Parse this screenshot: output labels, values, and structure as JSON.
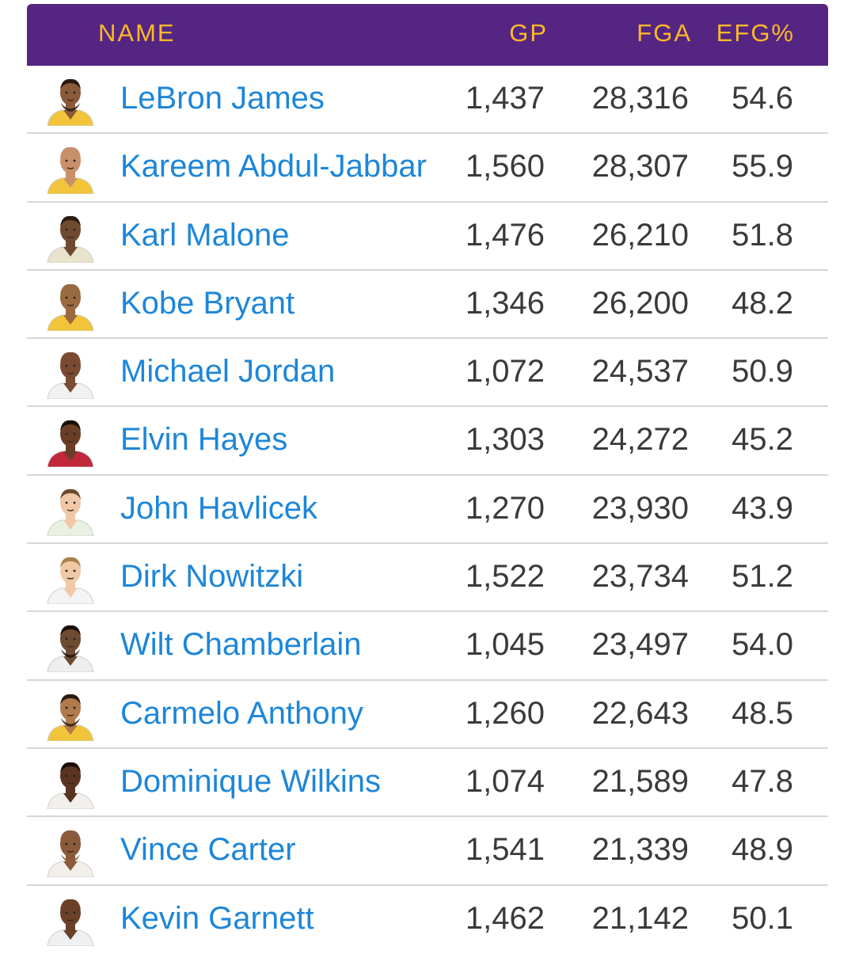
{
  "header": {
    "name": "NAME",
    "gp": "GP",
    "fga": "FGA",
    "efg": "EFG%"
  },
  "colors": {
    "header_bg": "#552583",
    "header_text": "#FDB927",
    "name_link": "#1d86d9",
    "value_text": "#3a3a3a",
    "divider": "#d6d6d6"
  },
  "rows": [
    {
      "name": "LeBron James",
      "gp": "1,437",
      "fga": "28,316",
      "efg": "54.6",
      "avatar": {
        "icon": "player-avatar-icon",
        "skin": "#8a5a3a",
        "jersey": "#f2c43a",
        "hair": "#2a1a10",
        "beard": true
      }
    },
    {
      "name": "Kareem Abdul-Jabbar",
      "gp": "1,560",
      "fga": "28,307",
      "efg": "55.9",
      "avatar": {
        "icon": "player-avatar-icon",
        "skin": "#c8906a",
        "jersey": "#f2c43a",
        "hair": "#c8906a",
        "beard": false
      }
    },
    {
      "name": "Karl Malone",
      "gp": "1,476",
      "fga": "26,210",
      "efg": "51.8",
      "avatar": {
        "icon": "player-avatar-icon",
        "skin": "#6e4a30",
        "jersey": "#e9e3cc",
        "hair": "#2a1a10",
        "beard": false
      }
    },
    {
      "name": "Kobe Bryant",
      "gp": "1,346",
      "fga": "26,200",
      "efg": "48.2",
      "avatar": {
        "icon": "player-avatar-icon",
        "skin": "#9a6a40",
        "jersey": "#f2c43a",
        "hair": "#9a6a40",
        "beard": false
      }
    },
    {
      "name": "Michael Jordan",
      "gp": "1,072",
      "fga": "24,537",
      "efg": "50.9",
      "avatar": {
        "icon": "player-avatar-icon",
        "skin": "#7a4a32",
        "jersey": "#f3f0f0",
        "hair": "#7a4a32",
        "beard": false
      }
    },
    {
      "name": "Elvin Hayes",
      "gp": "1,303",
      "fga": "24,272",
      "efg": "45.2",
      "avatar": {
        "icon": "player-avatar-icon",
        "skin": "#6a3e26",
        "jersey": "#c0283a",
        "hair": "#1a0f08",
        "beard": false
      }
    },
    {
      "name": "John Havlicek",
      "gp": "1,270",
      "fga": "23,930",
      "efg": "43.9",
      "avatar": {
        "icon": "player-avatar-icon",
        "skin": "#f0c8a8",
        "jersey": "#e9f2e2",
        "hair": "#6a4a2e",
        "beard": false
      }
    },
    {
      "name": "Dirk Nowitzki",
      "gp": "1,522",
      "fga": "23,734",
      "efg": "51.2",
      "avatar": {
        "icon": "player-avatar-icon",
        "skin": "#f0caa8",
        "jersey": "#f2f4f6",
        "hair": "#a8804a",
        "beard": false
      }
    },
    {
      "name": "Wilt Chamberlain",
      "gp": "1,045",
      "fga": "23,497",
      "efg": "54.0",
      "avatar": {
        "icon": "player-avatar-icon",
        "skin": "#6e4a30",
        "jersey": "#eeeeee",
        "hair": "#1a0f08",
        "beard": true
      }
    },
    {
      "name": "Carmelo Anthony",
      "gp": "1,260",
      "fga": "22,643",
      "efg": "48.5",
      "avatar": {
        "icon": "player-avatar-icon",
        "skin": "#b07a4a",
        "jersey": "#f2c43a",
        "hair": "#2a1a10",
        "beard": true
      }
    },
    {
      "name": "Dominique Wilkins",
      "gp": "1,074",
      "fga": "21,589",
      "efg": "47.8",
      "avatar": {
        "icon": "player-avatar-icon",
        "skin": "#5a3420",
        "jersey": "#f3f0ec",
        "hair": "#1a0f08",
        "beard": false
      }
    },
    {
      "name": "Vince Carter",
      "gp": "1,541",
      "fga": "21,339",
      "efg": "48.9",
      "avatar": {
        "icon": "player-avatar-icon",
        "skin": "#8a5a3a",
        "jersey": "#f3f0ec",
        "hair": "#8a5a3a",
        "beard": true
      }
    },
    {
      "name": "Kevin Garnett",
      "gp": "1,462",
      "fga": "21,142",
      "efg": "50.1",
      "avatar": {
        "icon": "player-avatar-icon",
        "skin": "#6a4028",
        "jersey": "#eef0f2",
        "hair": "#6a4028",
        "beard": false
      }
    }
  ]
}
